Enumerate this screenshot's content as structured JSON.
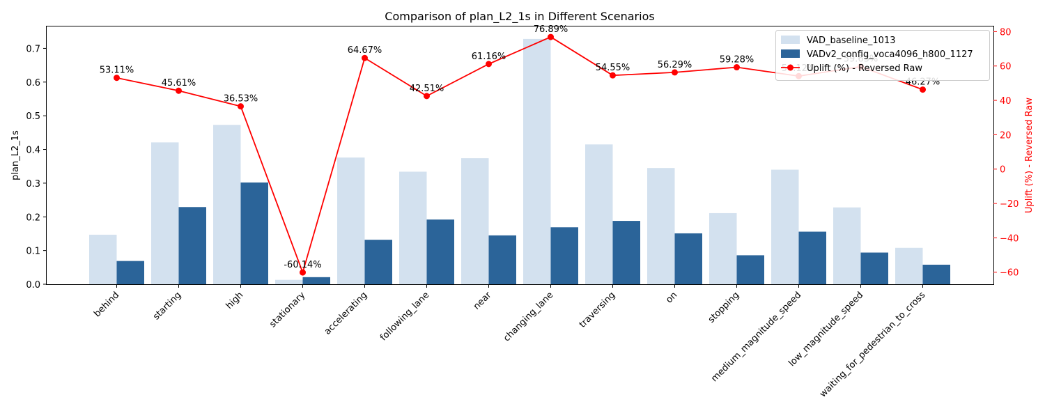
{
  "chart_data": {
    "type": "bar",
    "title": "Comparison of plan_L2_1s in Different Scenarios",
    "ylabel": "plan_L2_1s",
    "y2label": "Uplift (%) - Reversed Raw",
    "ylim": [
      0,
      0.765
    ],
    "y2lim": [
      -67,
      83
    ],
    "yticks": [
      "0.0",
      "0.1",
      "0.2",
      "0.3",
      "0.4",
      "0.5",
      "0.6",
      "0.7"
    ],
    "y2ticks": [
      "−60",
      "−40",
      "−20",
      "0",
      "20",
      "40",
      "60",
      "80"
    ],
    "categories": [
      "behind",
      "starting",
      "high",
      "stationary",
      "accelerating",
      "following_lane",
      "near",
      "changing_lane",
      "traversing",
      "on",
      "stopping",
      "medium_magnitude_speed",
      "low_magnitude_speed",
      "waiting_for_pedestrian_to_cross"
    ],
    "series": [
      {
        "name": "VAD_baseline_1013",
        "kind": "bar",
        "color": "#d3e1ef",
        "values": [
          0.147,
          0.421,
          0.473,
          0.013,
          0.376,
          0.334,
          0.374,
          0.728,
          0.415,
          0.345,
          0.211,
          0.34,
          0.228,
          0.108
        ]
      },
      {
        "name": "VADv2_config_voca4096_h800_1127",
        "kind": "bar",
        "color": "#2b6499",
        "values": [
          0.069,
          0.229,
          0.302,
          0.021,
          0.132,
          0.192,
          0.145,
          0.169,
          0.188,
          0.151,
          0.086,
          0.156,
          0.094,
          0.058
        ]
      },
      {
        "name": "Uplift (%) - Reversed Raw",
        "kind": "line",
        "color": "#ff0000",
        "axis": "right",
        "values": [
          53.11,
          45.61,
          36.53,
          -60.14,
          64.67,
          42.51,
          61.16,
          76.89,
          54.55,
          56.29,
          59.28,
          54.12,
          59.63,
          46.27
        ],
        "labels": [
          "53.11%",
          "45.61%",
          "36.53%",
          "-60.14%",
          "64.67%",
          "42.51%",
          "61.16%",
          "76.89%",
          "54.55%",
          "56.29%",
          "59.28%",
          "54.12%",
          "59.63%",
          "46.27%"
        ]
      }
    ],
    "legend_position": "top-right",
    "grid": false
  }
}
